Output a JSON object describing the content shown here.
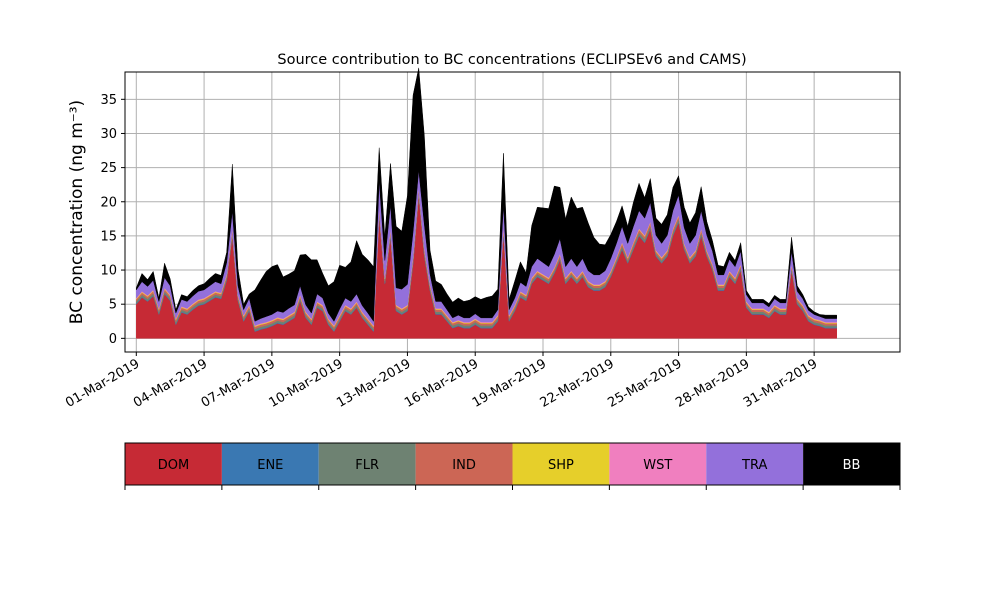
{
  "chart_data": {
    "type": "area",
    "stacked": true,
    "title": "Source contribution to BC concentrations (ECLIPSEv6 and CAMS)",
    "xlabel": "",
    "ylabel": "BC concentration (ng m⁻³)",
    "ylim": [
      -2,
      39
    ],
    "yticks": [
      0,
      5,
      10,
      15,
      20,
      25,
      30,
      35
    ],
    "xlim_days": [
      -0.5,
      33.8
    ],
    "xticks": [
      {
        "day": 0,
        "label": "01-Mar-2019"
      },
      {
        "day": 3,
        "label": "04-Mar-2019"
      },
      {
        "day": 6,
        "label": "07-Mar-2019"
      },
      {
        "day": 9,
        "label": "10-Mar-2019"
      },
      {
        "day": 12,
        "label": "13-Mar-2019"
      },
      {
        "day": 15,
        "label": "16-Mar-2019"
      },
      {
        "day": 18,
        "label": "19-Mar-2019"
      },
      {
        "day": 21,
        "label": "22-Mar-2019"
      },
      {
        "day": 24,
        "label": "25-Mar-2019"
      },
      {
        "day": 27,
        "label": "28-Mar-2019"
      },
      {
        "day": 30,
        "label": "31-Mar-2019"
      }
    ],
    "grid": true,
    "legend": {
      "placement": "bottom",
      "items": [
        {
          "label": "DOM",
          "color": "#c62a35",
          "text_color": "#000000"
        },
        {
          "label": "ENE",
          "color": "#3a78b2",
          "text_color": "#000000"
        },
        {
          "label": "FLR",
          "color": "#6e8272",
          "text_color": "#000000"
        },
        {
          "label": "IND",
          "color": "#cc6655",
          "text_color": "#000000"
        },
        {
          "label": "SHP",
          "color": "#e6cf2a",
          "text_color": "#000000"
        },
        {
          "label": "WST",
          "color": "#f07fbf",
          "text_color": "#000000"
        },
        {
          "label": "TRA",
          "color": "#9370db",
          "text_color": "#000000"
        },
        {
          "label": "BB",
          "color": "#000000",
          "text_color": "#ffffff"
        }
      ]
    },
    "x": [
      0.0,
      0.25,
      0.5,
      0.75,
      1.0,
      1.25,
      1.5,
      1.75,
      2.0,
      2.25,
      2.5,
      2.75,
      3.0,
      3.25,
      3.5,
      3.75,
      4.0,
      4.25,
      4.5,
      4.75,
      5.0,
      5.25,
      5.5,
      5.75,
      6.0,
      6.25,
      6.5,
      6.75,
      7.0,
      7.25,
      7.5,
      7.75,
      8.0,
      8.25,
      8.5,
      8.75,
      9.0,
      9.25,
      9.5,
      9.75,
      10.0,
      10.25,
      10.5,
      10.75,
      11.0,
      11.25,
      11.5,
      11.75,
      12.0,
      12.25,
      12.5,
      12.75,
      13.0,
      13.25,
      13.5,
      13.75,
      14.0,
      14.25,
      14.5,
      14.75,
      15.0,
      15.25,
      15.5,
      15.75,
      16.0,
      16.25,
      16.5,
      16.75,
      17.0,
      17.25,
      17.5,
      17.75,
      18.0,
      18.25,
      18.5,
      18.75,
      19.0,
      19.25,
      19.5,
      19.75,
      20.0,
      20.25,
      20.5,
      20.75,
      21.0,
      21.25,
      21.5,
      21.75,
      22.0,
      22.25,
      22.5,
      22.75,
      23.0,
      23.25,
      23.5,
      23.75,
      24.0,
      24.25,
      24.5,
      24.75,
      25.0,
      25.25,
      25.5,
      25.75,
      26.0,
      26.25,
      26.5,
      26.75,
      27.0,
      27.25,
      27.5,
      27.75,
      28.0,
      28.25,
      28.5,
      28.75,
      29.0,
      29.25,
      29.5,
      29.75,
      30.0,
      30.25,
      30.5,
      30.75,
      31.0
    ],
    "series": [
      {
        "name": "DOM",
        "color": "#c62a35",
        "values": [
          5.0,
          6.0,
          5.4,
          6.2,
          3.5,
          6.5,
          5.5,
          2.0,
          3.8,
          3.5,
          4.2,
          4.8,
          5.0,
          5.5,
          6.0,
          5.8,
          8.5,
          15.0,
          5.5,
          2.5,
          4.0,
          1.0,
          1.3,
          1.5,
          1.8,
          2.2,
          2.0,
          2.5,
          3.0,
          5.5,
          3.0,
          2.0,
          4.5,
          4.0,
          2.0,
          1.0,
          2.5,
          4.0,
          3.5,
          4.5,
          3.0,
          2.0,
          1.0,
          18.0,
          8.0,
          15.0,
          4.0,
          3.5,
          4.0,
          11.0,
          21.0,
          12.0,
          7.0,
          3.5,
          3.5,
          2.5,
          1.5,
          1.8,
          1.5,
          1.5,
          2.0,
          1.5,
          1.5,
          1.5,
          2.5,
          15.5,
          2.5,
          4.0,
          6.0,
          5.5,
          8.0,
          9.0,
          8.5,
          8.0,
          9.5,
          11.5,
          8.0,
          9.0,
          8.0,
          9.0,
          7.5,
          7.0,
          7.0,
          7.5,
          9.0,
          11.0,
          13.0,
          11.0,
          13.0,
          15.0,
          14.0,
          16.0,
          12.0,
          11.0,
          12.0,
          15.0,
          17.0,
          13.0,
          11.0,
          12.0,
          15.0,
          12.0,
          10.0,
          7.0,
          7.0,
          9.0,
          8.0,
          10.0,
          4.5,
          3.5,
          3.5,
          3.5,
          3.0,
          4.0,
          3.5,
          3.5,
          10.0,
          5.0,
          4.0,
          2.5,
          2.0,
          1.8,
          1.5,
          1.5,
          1.5
        ]
      },
      {
        "name": "ENE",
        "color": "#3a78b2",
        "values": [
          0.1,
          0.1,
          0.1,
          0.1,
          0.1,
          0.1,
          0.1,
          0.1,
          0.1,
          0.1,
          0.1,
          0.1,
          0.1,
          0.1,
          0.1,
          0.1,
          0.1,
          0.1,
          0.1,
          0.1,
          0.1,
          0.1,
          0.1,
          0.1,
          0.1,
          0.1,
          0.1,
          0.1,
          0.1,
          0.1,
          0.1,
          0.1,
          0.1,
          0.1,
          0.1,
          0.1,
          0.1,
          0.1,
          0.1,
          0.1,
          0.1,
          0.1,
          0.1,
          0.1,
          0.1,
          0.1,
          0.1,
          0.1,
          0.1,
          0.1,
          0.1,
          0.1,
          0.1,
          0.1,
          0.1,
          0.1,
          0.1,
          0.1,
          0.1,
          0.1,
          0.1,
          0.1,
          0.1,
          0.1,
          0.1,
          0.1,
          0.1,
          0.1,
          0.1,
          0.1,
          0.1,
          0.1,
          0.1,
          0.1,
          0.1,
          0.1,
          0.1,
          0.1,
          0.1,
          0.1,
          0.1,
          0.1,
          0.1,
          0.1,
          0.1,
          0.1,
          0.1,
          0.1,
          0.1,
          0.1,
          0.1,
          0.1,
          0.1,
          0.1,
          0.1,
          0.1,
          0.1,
          0.1,
          0.1,
          0.1,
          0.1,
          0.1,
          0.1,
          0.1,
          0.1,
          0.1,
          0.1,
          0.1,
          0.1,
          0.1,
          0.1,
          0.1,
          0.1,
          0.1,
          0.1,
          0.1,
          0.1,
          0.1,
          0.1,
          0.1,
          0.1,
          0.1,
          0.1,
          0.1,
          0.1
        ]
      },
      {
        "name": "FLR",
        "color": "#6e8272",
        "values": [
          0.3,
          0.3,
          0.3,
          0.3,
          0.3,
          0.3,
          0.3,
          0.3,
          0.3,
          0.3,
          0.3,
          0.3,
          0.3,
          0.3,
          0.3,
          0.3,
          0.3,
          0.4,
          0.3,
          0.3,
          0.3,
          0.3,
          0.3,
          0.3,
          0.3,
          0.3,
          0.3,
          0.3,
          0.3,
          0.3,
          0.3,
          0.3,
          0.3,
          0.3,
          0.3,
          0.3,
          0.3,
          0.3,
          0.3,
          0.3,
          0.3,
          0.3,
          0.3,
          0.4,
          0.3,
          0.4,
          0.3,
          0.3,
          0.3,
          0.4,
          0.4,
          0.4,
          0.3,
          0.3,
          0.3,
          0.3,
          0.3,
          0.3,
          0.3,
          0.3,
          0.3,
          0.3,
          0.3,
          0.3,
          0.3,
          0.4,
          0.3,
          0.3,
          0.3,
          0.3,
          0.3,
          0.3,
          0.3,
          0.3,
          0.3,
          0.3,
          0.3,
          0.3,
          0.3,
          0.3,
          0.3,
          0.3,
          0.3,
          0.3,
          0.3,
          0.3,
          0.4,
          0.3,
          0.4,
          0.4,
          0.4,
          0.4,
          0.3,
          0.3,
          0.3,
          0.4,
          0.4,
          0.3,
          0.3,
          0.3,
          0.4,
          0.3,
          0.3,
          0.3,
          0.3,
          0.3,
          0.3,
          0.3,
          0.3,
          0.3,
          0.3,
          0.3,
          0.3,
          0.3,
          0.3,
          0.3,
          0.3,
          0.3,
          0.3,
          0.3,
          0.3,
          0.3,
          0.3,
          0.3,
          0.3
        ]
      },
      {
        "name": "IND",
        "color": "#cc6655",
        "values": [
          0.3,
          0.3,
          0.3,
          0.3,
          0.3,
          0.3,
          0.3,
          0.3,
          0.3,
          0.3,
          0.3,
          0.3,
          0.3,
          0.3,
          0.3,
          0.3,
          0.3,
          0.4,
          0.3,
          0.3,
          0.3,
          0.3,
          0.3,
          0.3,
          0.3,
          0.3,
          0.3,
          0.3,
          0.3,
          0.3,
          0.3,
          0.3,
          0.3,
          0.3,
          0.3,
          0.3,
          0.3,
          0.3,
          0.3,
          0.3,
          0.3,
          0.3,
          0.3,
          0.4,
          0.3,
          0.4,
          0.3,
          0.3,
          0.3,
          0.4,
          0.4,
          0.4,
          0.3,
          0.3,
          0.3,
          0.3,
          0.3,
          0.3,
          0.3,
          0.3,
          0.3,
          0.3,
          0.3,
          0.3,
          0.3,
          0.4,
          0.3,
          0.3,
          0.3,
          0.3,
          0.3,
          0.3,
          0.3,
          0.3,
          0.3,
          0.3,
          0.3,
          0.3,
          0.3,
          0.3,
          0.3,
          0.3,
          0.3,
          0.3,
          0.3,
          0.3,
          0.4,
          0.3,
          0.4,
          0.4,
          0.4,
          0.4,
          0.3,
          0.3,
          0.3,
          0.4,
          0.4,
          0.3,
          0.3,
          0.3,
          0.4,
          0.3,
          0.3,
          0.3,
          0.3,
          0.3,
          0.3,
          0.3,
          0.3,
          0.3,
          0.3,
          0.3,
          0.3,
          0.3,
          0.3,
          0.3,
          0.3,
          0.3,
          0.3,
          0.3,
          0.3,
          0.3,
          0.3,
          0.3,
          0.3
        ]
      },
      {
        "name": "SHP",
        "color": "#e6cf2a",
        "values": [
          0.1,
          0.1,
          0.1,
          0.1,
          0.1,
          0.1,
          0.1,
          0.1,
          0.1,
          0.1,
          0.1,
          0.1,
          0.1,
          0.1,
          0.1,
          0.1,
          0.1,
          0.1,
          0.1,
          0.1,
          0.1,
          0.1,
          0.1,
          0.1,
          0.1,
          0.1,
          0.1,
          0.1,
          0.1,
          0.1,
          0.1,
          0.1,
          0.1,
          0.1,
          0.1,
          0.1,
          0.1,
          0.1,
          0.1,
          0.1,
          0.1,
          0.1,
          0.1,
          0.1,
          0.1,
          0.1,
          0.1,
          0.1,
          0.1,
          0.1,
          0.1,
          0.1,
          0.1,
          0.1,
          0.1,
          0.1,
          0.1,
          0.1,
          0.1,
          0.1,
          0.1,
          0.1,
          0.1,
          0.1,
          0.1,
          0.1,
          0.1,
          0.1,
          0.1,
          0.1,
          0.1,
          0.1,
          0.1,
          0.1,
          0.1,
          0.1,
          0.1,
          0.1,
          0.1,
          0.1,
          0.1,
          0.1,
          0.1,
          0.1,
          0.1,
          0.1,
          0.1,
          0.1,
          0.1,
          0.1,
          0.1,
          0.1,
          0.1,
          0.1,
          0.1,
          0.1,
          0.1,
          0.1,
          0.1,
          0.1,
          0.1,
          0.1,
          0.1,
          0.1,
          0.1,
          0.1,
          0.1,
          0.1,
          0.1,
          0.1,
          0.1,
          0.1,
          0.1,
          0.1,
          0.1,
          0.1,
          0.1,
          0.1,
          0.1,
          0.1,
          0.1,
          0.1,
          0.1,
          0.1,
          0.1
        ]
      },
      {
        "name": "WST",
        "color": "#f07fbf",
        "values": [
          0.1,
          0.1,
          0.1,
          0.1,
          0.1,
          0.1,
          0.1,
          0.1,
          0.1,
          0.1,
          0.1,
          0.1,
          0.1,
          0.1,
          0.1,
          0.1,
          0.1,
          0.1,
          0.1,
          0.1,
          0.1,
          0.1,
          0.1,
          0.1,
          0.1,
          0.1,
          0.1,
          0.1,
          0.1,
          0.1,
          0.1,
          0.1,
          0.1,
          0.1,
          0.1,
          0.1,
          0.1,
          0.1,
          0.1,
          0.1,
          0.1,
          0.1,
          0.1,
          0.1,
          0.1,
          0.1,
          0.1,
          0.1,
          0.1,
          0.1,
          0.1,
          0.1,
          0.1,
          0.1,
          0.1,
          0.1,
          0.1,
          0.1,
          0.1,
          0.1,
          0.1,
          0.1,
          0.1,
          0.1,
          0.1,
          0.1,
          0.1,
          0.1,
          0.1,
          0.1,
          0.1,
          0.1,
          0.1,
          0.1,
          0.1,
          0.1,
          0.1,
          0.1,
          0.1,
          0.1,
          0.1,
          0.1,
          0.1,
          0.1,
          0.1,
          0.1,
          0.1,
          0.1,
          0.1,
          0.1,
          0.1,
          0.1,
          0.1,
          0.1,
          0.1,
          0.1,
          0.1,
          0.1,
          0.1,
          0.1,
          0.1,
          0.1,
          0.1,
          0.1,
          0.1,
          0.1,
          0.1,
          0.1,
          0.1,
          0.1,
          0.1,
          0.1,
          0.1,
          0.1,
          0.1,
          0.1,
          0.1,
          0.1,
          0.1,
          0.1,
          0.1,
          0.1,
          0.1,
          0.1,
          0.1
        ]
      },
      {
        "name": "TRA",
        "color": "#9370db",
        "values": [
          1.2,
          1.4,
          1.3,
          1.4,
          1.0,
          1.5,
          1.3,
          0.8,
          1.0,
          1.0,
          1.1,
          1.2,
          1.2,
          1.3,
          1.4,
          1.3,
          1.7,
          2.5,
          1.3,
          0.8,
          1.0,
          0.6,
          0.7,
          0.8,
          0.8,
          0.9,
          0.9,
          1.0,
          1.0,
          1.3,
          1.0,
          0.8,
          1.1,
          1.0,
          0.8,
          0.6,
          0.9,
          1.0,
          1.0,
          1.1,
          0.9,
          0.8,
          0.6,
          4.0,
          2.5,
          3.5,
          2.5,
          2.8,
          3.0,
          3.5,
          2.5,
          3.5,
          1.5,
          1.0,
          1.0,
          0.8,
          0.6,
          0.7,
          0.6,
          0.6,
          0.7,
          0.6,
          0.6,
          0.6,
          0.8,
          3.0,
          0.8,
          1.0,
          1.3,
          1.2,
          1.6,
          1.8,
          1.7,
          1.6,
          1.9,
          2.2,
          1.6,
          1.8,
          1.6,
          1.8,
          1.5,
          1.4,
          1.4,
          1.5,
          1.8,
          2.0,
          2.3,
          2.0,
          2.3,
          2.6,
          2.5,
          2.8,
          2.2,
          2.0,
          2.2,
          2.6,
          2.9,
          2.3,
          2.0,
          2.2,
          2.6,
          2.2,
          1.9,
          1.4,
          1.4,
          1.7,
          1.6,
          1.9,
          1.0,
          0.8,
          0.8,
          0.8,
          0.7,
          0.9,
          0.8,
          0.8,
          1.9,
          1.0,
          0.9,
          0.7,
          0.6,
          0.5,
          0.5,
          0.5,
          0.5
        ]
      },
      {
        "name": "BB",
        "color": "#000000",
        "values": [
          0.3,
          1.2,
          1.0,
          1.3,
          0.5,
          2.1,
          1.0,
          0.5,
          0.7,
          0.7,
          0.8,
          0.8,
          0.9,
          1.1,
          1.2,
          1.2,
          1.5,
          6.9,
          2.5,
          0.8,
          0.6,
          4.6,
          5.6,
          6.6,
          7.0,
          6.8,
          5.2,
          5.0,
          5.0,
          4.5,
          7.4,
          7.8,
          5.0,
          3.6,
          4.0,
          5.8,
          6.4,
          4.5,
          5.8,
          7.8,
          7.5,
          7.8,
          8.0,
          4.8,
          3.5,
          6.0,
          9.0,
          8.5,
          13.0,
          20.0,
          15.0,
          13.0,
          3.5,
          3.0,
          2.5,
          2.3,
          2.3,
          2.5,
          2.4,
          2.6,
          2.5,
          2.7,
          3.0,
          3.2,
          3.0,
          7.5,
          1.5,
          2.5,
          3.0,
          2.0,
          6.0,
          7.5,
          8.0,
          8.5,
          10.0,
          7.5,
          7.0,
          9.0,
          8.5,
          7.5,
          7.0,
          5.5,
          4.5,
          3.8,
          3.5,
          3.2,
          3.0,
          2.5,
          3.5,
          4.0,
          3.0,
          3.5,
          2.5,
          2.8,
          3.0,
          3.4,
          2.8,
          3.0,
          3.0,
          3.3,
          3.5,
          2.0,
          1.5,
          1.4,
          1.2,
          1.0,
          0.9,
          1.2,
          0.6,
          0.5,
          0.5,
          0.5,
          0.5,
          0.5,
          0.5,
          0.5,
          2.0,
          0.8,
          0.6,
          0.5,
          0.4,
          0.3,
          0.5,
          0.5,
          0.5
        ]
      }
    ]
  }
}
